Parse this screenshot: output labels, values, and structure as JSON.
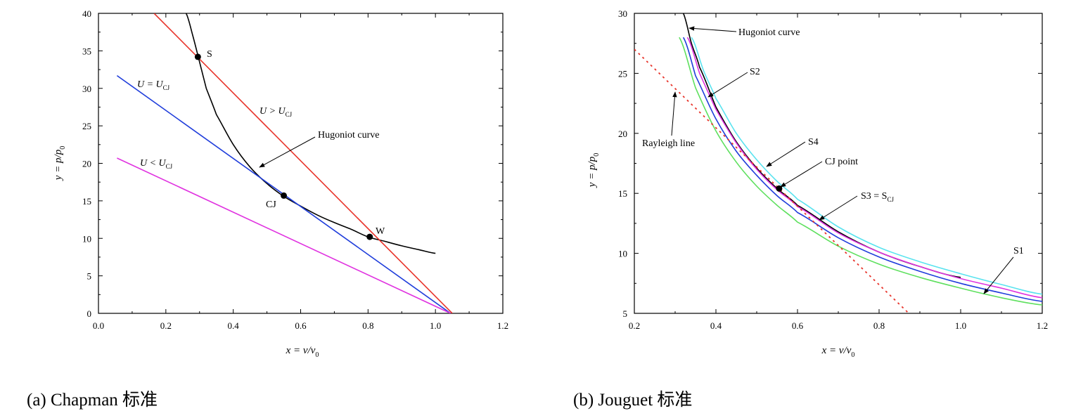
{
  "chart_data": [
    {
      "type": "line",
      "caption": "(a) Chapman  标准",
      "xlabel": "x = v/v0",
      "ylabel": "y = p/p0",
      "xlim": [
        0.0,
        1.2
      ],
      "ylim": [
        0,
        40
      ],
      "xticks": [
        "0.0",
        "0.2",
        "0.4",
        "0.6",
        "0.8",
        "1.0",
        "1.2"
      ],
      "yticks": [
        "0",
        "5",
        "10",
        "15",
        "20",
        "25",
        "30",
        "35",
        "40"
      ],
      "series": [
        {
          "name": "Hugoniot curve",
          "color": "#000000",
          "style": "solid",
          "x": [
            0.26,
            0.28,
            0.3,
            0.32,
            0.35,
            0.4,
            0.45,
            0.5,
            0.55,
            0.6,
            0.65,
            0.7,
            0.75,
            0.8,
            0.85,
            0.9,
            0.95,
            1.0
          ],
          "y": [
            40.0,
            37.0,
            33.5,
            30.0,
            26.5,
            22.5,
            19.5,
            17.3,
            15.6,
            14.3,
            13.1,
            12.1,
            11.2,
            10.2,
            9.6,
            9.0,
            8.5,
            8.0
          ]
        },
        {
          "name": "U > U_CJ",
          "color": "#e8342b",
          "style": "solid",
          "x": [
            0.165,
            1.05
          ],
          "y": [
            40.0,
            0.0
          ]
        },
        {
          "name": "U = U_CJ",
          "color": "#1f3ddb",
          "style": "solid",
          "x": [
            0.055,
            1.045
          ],
          "y": [
            31.7,
            0.0
          ]
        },
        {
          "name": "U < U_CJ",
          "color": "#e033e0",
          "style": "solid",
          "x": [
            0.055,
            1.045
          ],
          "y": [
            20.7,
            0.0
          ]
        }
      ],
      "points": [
        {
          "label": "S",
          "x": 0.295,
          "y": 34.2
        },
        {
          "label": "CJ",
          "x": 0.55,
          "y": 15.7
        },
        {
          "label": "W",
          "x": 0.805,
          "y": 10.2
        }
      ],
      "annotations": {
        "u_eq": {
          "pre": "U = U",
          "sub": "CJ"
        },
        "u_gt": {
          "pre": "U > U",
          "sub": "CJ"
        },
        "u_lt": {
          "pre": "U < U",
          "sub": "CJ"
        },
        "hugoniot": "Hugoniot curve"
      }
    },
    {
      "type": "line",
      "caption": "(b) Jouguet 标准",
      "xlabel": "x = v/v0",
      "ylabel": "y = p/p0",
      "xlim": [
        0.2,
        1.2
      ],
      "ylim": [
        5,
        30
      ],
      "xticks": [
        "0.2",
        "0.4",
        "0.6",
        "0.8",
        "1.0",
        "1.2"
      ],
      "yticks": [
        "5",
        "10",
        "15",
        "20",
        "25",
        "30"
      ],
      "series": [
        {
          "name": "Hugoniot curve",
          "color": "#000000",
          "style": "solid",
          "x": [
            0.32,
            0.34,
            0.36,
            0.4,
            0.45,
            0.5,
            0.55,
            0.6,
            0.7,
            0.8,
            0.9,
            1.0
          ],
          "y": [
            30.0,
            27.5,
            25.5,
            22.2,
            19.3,
            17.1,
            15.4,
            14.0,
            11.8,
            10.1,
            8.9,
            8.0
          ]
        },
        {
          "name": "S1",
          "color": "#5ee05e",
          "style": "solid",
          "x": [
            0.31,
            0.35,
            0.4,
            0.45,
            0.5,
            0.55,
            0.6,
            0.7,
            0.8,
            0.9,
            1.0,
            1.1,
            1.2
          ],
          "y": [
            28.0,
            23.8,
            20.2,
            17.6,
            15.6,
            14.0,
            12.6,
            10.6,
            9.1,
            8.0,
            7.1,
            6.3,
            5.7
          ]
        },
        {
          "name": "S2",
          "color": "#1f3ddb",
          "style": "solid",
          "x": [
            0.32,
            0.35,
            0.4,
            0.45,
            0.5,
            0.55,
            0.6,
            0.7,
            0.8,
            0.9,
            1.0,
            1.1,
            1.2
          ],
          "y": [
            28.0,
            24.8,
            21.2,
            18.5,
            16.5,
            14.8,
            13.4,
            11.3,
            9.7,
            8.5,
            7.5,
            6.7,
            6.0
          ]
        },
        {
          "name": "S3 = SCJ",
          "color": "#e033e0",
          "style": "solid",
          "x": [
            0.33,
            0.36,
            0.4,
            0.45,
            0.5,
            0.55,
            0.6,
            0.7,
            0.8,
            0.9,
            1.0,
            1.1,
            1.2
          ],
          "y": [
            28.0,
            25.0,
            22.0,
            19.2,
            17.0,
            15.3,
            13.9,
            11.7,
            10.1,
            8.9,
            7.9,
            7.1,
            6.3
          ]
        },
        {
          "name": "S4",
          "color": "#59e3ef",
          "style": "solid",
          "x": [
            0.34,
            0.37,
            0.4,
            0.45,
            0.5,
            0.55,
            0.6,
            0.7,
            0.8,
            0.9,
            1.0,
            1.1,
            1.2
          ],
          "y": [
            28.0,
            25.2,
            22.9,
            20.0,
            17.8,
            16.0,
            14.5,
            12.2,
            10.5,
            9.3,
            8.3,
            7.4,
            6.6
          ]
        },
        {
          "name": "Rayleigh line",
          "color": "#e8342b",
          "style": "dotted",
          "x": [
            0.2,
            0.873
          ],
          "y": [
            27.0,
            5.0
          ]
        }
      ],
      "points": [
        {
          "label": "CJ point",
          "x": 0.555,
          "y": 15.4
        }
      ],
      "annotations": {
        "hugoniot": "Hugoniot curve",
        "rayleigh": "Rayleigh line",
        "s1": "S1",
        "s2": "S2",
        "s4": "S4",
        "cj_point": "CJ point",
        "s3": {
          "pre": "S3 = S",
          "sub": "CJ"
        }
      }
    }
  ],
  "captions": {
    "a": "(a) Chapman  标准",
    "b": "(b) Jouguet 标准"
  }
}
